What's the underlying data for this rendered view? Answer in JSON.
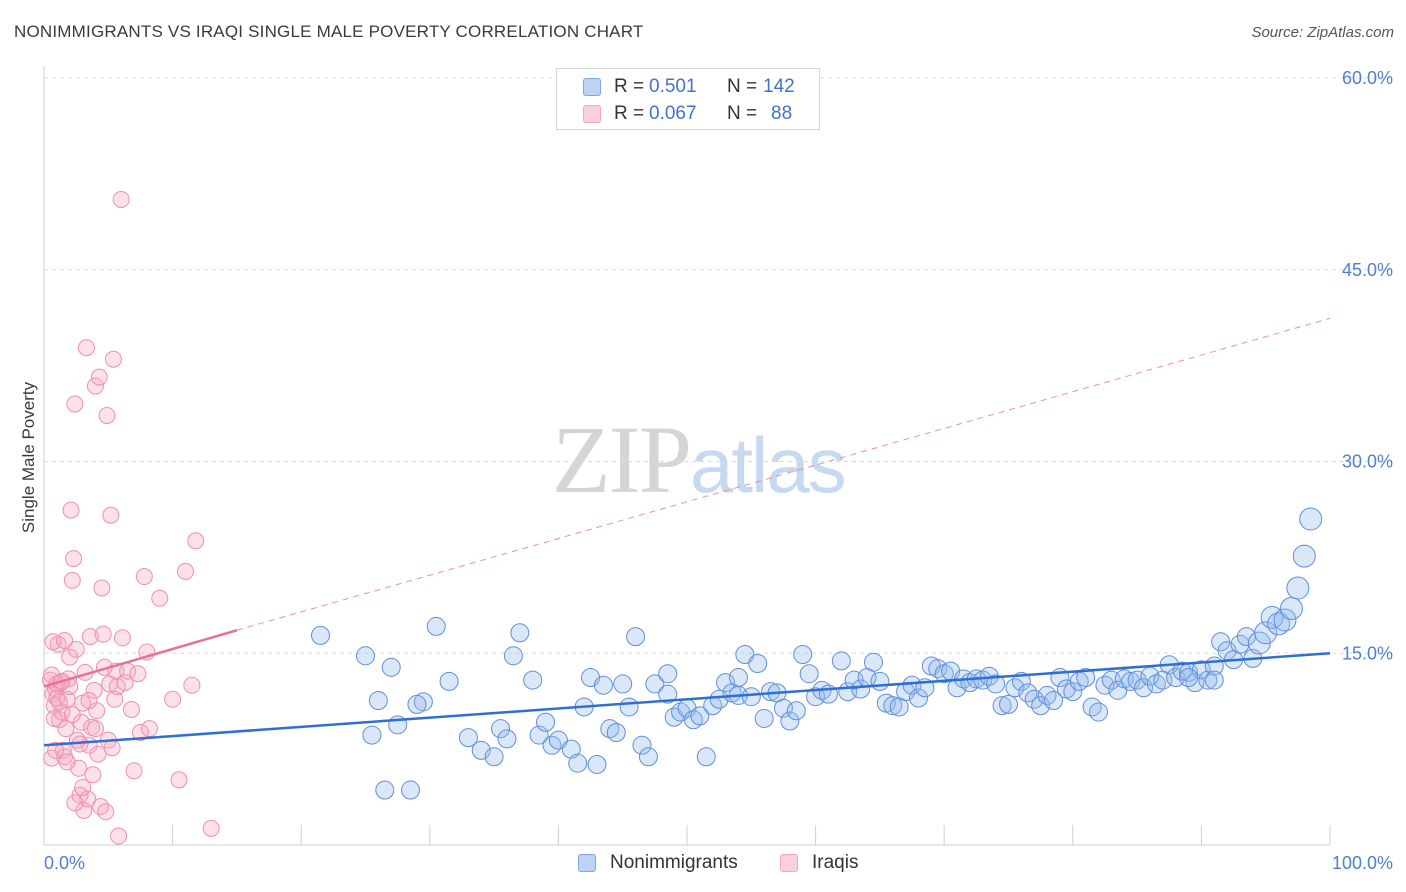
{
  "header": {
    "title": "NONIMMIGRANTS VS IRAQI SINGLE MALE POVERTY CORRELATION CHART",
    "source": "Source: ZipAtlas.com"
  },
  "watermark": {
    "zip": "ZIP",
    "atlas": "atlas"
  },
  "legend_top": [
    {
      "r_label": "R =",
      "r_value": "0.501",
      "n_label": "N =",
      "n_value": "142",
      "color": "#7fa8e8"
    },
    {
      "r_label": "R =",
      "r_value": "0.067",
      "n_label": "N =",
      "n_value": "88",
      "color": "#f3a6bd"
    }
  ],
  "legend_bottom": [
    {
      "label": "Nonimmigrants",
      "color": "#7fa8e8"
    },
    {
      "label": "Iraqis",
      "color": "#f3a6bd"
    }
  ],
  "chart_data": {
    "type": "scatter",
    "title": "NONIMMIGRANTS VS IRAQI SINGLE MALE POVERTY CORRELATION CHART",
    "xlabel": "",
    "ylabel": "Single Male Poverty",
    "xlim": [
      0,
      100
    ],
    "ylim": [
      0,
      60
    ],
    "x_tick_labels": [
      "0.0%",
      "100.0%"
    ],
    "y_ticks": [
      15,
      30,
      45,
      60
    ],
    "y_tick_labels": [
      "15.0%",
      "30.0%",
      "45.0%",
      "60.0%"
    ],
    "grid": "horizontal dashed",
    "legend_position": "top-center",
    "colors": {
      "nonimmigrants": "#4f86dd",
      "iraqis": "#ef8fad",
      "blue_line": "#2f6fd1",
      "pink_line": "#e8709a"
    },
    "series": [
      {
        "name": "Nonimmigrants",
        "trend": {
          "x0": 0,
          "y0": 7.8,
          "x1": 100,
          "y1": 15.0
        },
        "points": [
          [
            21.5,
            16.4
          ],
          [
            25.0,
            14.8
          ],
          [
            25.5,
            8.6
          ],
          [
            26.0,
            11.3
          ],
          [
            26.5,
            4.3
          ],
          [
            27.0,
            13.9
          ],
          [
            27.5,
            9.4
          ],
          [
            28.5,
            4.3
          ],
          [
            29.5,
            11.2
          ],
          [
            29.0,
            11.0
          ],
          [
            30.5,
            17.1
          ],
          [
            31.5,
            12.8
          ],
          [
            33.0,
            8.4
          ],
          [
            34.0,
            7.4
          ],
          [
            35.0,
            6.9
          ],
          [
            35.5,
            9.1
          ],
          [
            36.0,
            8.3
          ],
          [
            36.5,
            14.8
          ],
          [
            37.0,
            16.6
          ],
          [
            38.0,
            12.9
          ],
          [
            38.5,
            8.6
          ],
          [
            39.0,
            9.6
          ],
          [
            39.5,
            7.8
          ],
          [
            40.0,
            8.2
          ],
          [
            41.0,
            7.5
          ],
          [
            41.5,
            6.4
          ],
          [
            42.0,
            10.8
          ],
          [
            42.5,
            13.1
          ],
          [
            43.0,
            6.3
          ],
          [
            43.5,
            12.5
          ],
          [
            44.0,
            9.1
          ],
          [
            44.5,
            8.8
          ],
          [
            45.0,
            12.6
          ],
          [
            45.5,
            10.8
          ],
          [
            46.0,
            16.3
          ],
          [
            46.5,
            7.8
          ],
          [
            47.0,
            6.9
          ],
          [
            47.5,
            12.6
          ],
          [
            48.5,
            13.4
          ],
          [
            48.5,
            11.8
          ],
          [
            49.0,
            10.0
          ],
          [
            49.5,
            10.4
          ],
          [
            50.0,
            10.7
          ],
          [
            50.5,
            9.8
          ],
          [
            51.0,
            10.1
          ],
          [
            51.5,
            6.9
          ],
          [
            52.0,
            10.9
          ],
          [
            52.5,
            11.4
          ],
          [
            53.0,
            12.7
          ],
          [
            53.5,
            11.9
          ],
          [
            54.0,
            13.1
          ],
          [
            54.5,
            14.9
          ],
          [
            54.0,
            11.7
          ],
          [
            55.0,
            11.6
          ],
          [
            55.5,
            14.2
          ],
          [
            56.0,
            9.9
          ],
          [
            56.5,
            12.0
          ],
          [
            57.0,
            11.9
          ],
          [
            57.5,
            10.7
          ],
          [
            58.0,
            9.7
          ],
          [
            58.5,
            10.5
          ],
          [
            59.0,
            14.9
          ],
          [
            59.5,
            13.4
          ],
          [
            60.0,
            11.6
          ],
          [
            60.5,
            12.1
          ],
          [
            61.0,
            11.8
          ],
          [
            62.0,
            14.4
          ],
          [
            62.5,
            12.0
          ],
          [
            63.0,
            12.9
          ],
          [
            63.5,
            12.2
          ],
          [
            64.0,
            13.1
          ],
          [
            64.5,
            14.3
          ],
          [
            65.0,
            12.8
          ],
          [
            65.5,
            11.1
          ],
          [
            66.0,
            10.9
          ],
          [
            66.5,
            10.8
          ],
          [
            67.0,
            12.0
          ],
          [
            67.5,
            12.5
          ],
          [
            68.0,
            11.5
          ],
          [
            68.5,
            12.3
          ],
          [
            69.0,
            14.0
          ],
          [
            69.5,
            13.8
          ],
          [
            70.0,
            13.4
          ],
          [
            70.5,
            13.6
          ],
          [
            71.0,
            12.3
          ],
          [
            71.5,
            13.0
          ],
          [
            72.0,
            12.7
          ],
          [
            72.5,
            13.0
          ],
          [
            73.0,
            12.9
          ],
          [
            73.5,
            13.2
          ],
          [
            74.0,
            12.6
          ],
          [
            74.5,
            10.9
          ],
          [
            75.0,
            11.0
          ],
          [
            75.5,
            12.3
          ],
          [
            76.0,
            12.8
          ],
          [
            76.5,
            11.9
          ],
          [
            77.0,
            11.4
          ],
          [
            77.5,
            10.9
          ],
          [
            78.0,
            11.7
          ],
          [
            78.5,
            11.3
          ],
          [
            79.0,
            13.1
          ],
          [
            79.5,
            12.2
          ],
          [
            80.0,
            12.0
          ],
          [
            80.5,
            12.8
          ],
          [
            81.0,
            13.1
          ],
          [
            81.5,
            10.8
          ],
          [
            82.0,
            10.4
          ],
          [
            82.5,
            12.5
          ],
          [
            83.0,
            12.9
          ],
          [
            83.5,
            12.1
          ],
          [
            84.0,
            13.0
          ],
          [
            84.5,
            12.8
          ],
          [
            85.0,
            12.9
          ],
          [
            85.5,
            12.3
          ],
          [
            86.0,
            13.2
          ],
          [
            86.5,
            12.6
          ],
          [
            87.0,
            12.9
          ],
          [
            87.5,
            14.1
          ],
          [
            88.0,
            13.1
          ],
          [
            88.5,
            13.6
          ],
          [
            89.0,
            13.5
          ],
          [
            89.5,
            12.7
          ],
          [
            90.0,
            13.7
          ],
          [
            90.5,
            12.9
          ],
          [
            91.0,
            14.0
          ],
          [
            91.5,
            15.9
          ],
          [
            92.0,
            15.2
          ],
          [
            92.5,
            14.5
          ],
          [
            93.0,
            15.7
          ],
          [
            93.5,
            16.3
          ],
          [
            94.0,
            14.6
          ],
          [
            94.5,
            15.8
          ],
          [
            95.0,
            16.6
          ],
          [
            95.5,
            17.8
          ],
          [
            96.0,
            17.3
          ],
          [
            96.5,
            17.6
          ],
          [
            97.0,
            18.5
          ],
          [
            97.5,
            20.1
          ],
          [
            98.0,
            22.6
          ],
          [
            98.5,
            25.5
          ],
          [
            91.0,
            12.9
          ],
          [
            89.0,
            13.1
          ]
        ]
      },
      {
        "name": "Iraqis",
        "trend": {
          "x0": 0,
          "y0": 12.4,
          "x1": 15,
          "y1": 16.8,
          "dash_to": {
            "x": 100,
            "y": 41.2
          }
        },
        "points": [
          [
            0.5,
            12.9
          ],
          [
            0.6,
            13.3
          ],
          [
            0.7,
            11.8
          ],
          [
            0.8,
            10.9
          ],
          [
            0.9,
            12.2
          ],
          [
            1.0,
            11.5
          ],
          [
            1.1,
            15.7
          ],
          [
            1.2,
            9.8
          ],
          [
            1.3,
            12.7
          ],
          [
            1.4,
            10.4
          ],
          [
            1.5,
            7.4
          ],
          [
            1.6,
            6.9
          ],
          [
            1.7,
            9.1
          ],
          [
            1.8,
            11.4
          ],
          [
            1.9,
            13.0
          ],
          [
            2.0,
            12.4
          ],
          [
            2.1,
            26.2
          ],
          [
            2.2,
            20.7
          ],
          [
            2.3,
            22.4
          ],
          [
            2.4,
            34.5
          ],
          [
            2.5,
            15.3
          ],
          [
            2.6,
            8.2
          ],
          [
            2.7,
            6.0
          ],
          [
            2.8,
            3.9
          ],
          [
            2.9,
            9.6
          ],
          [
            3.0,
            11.1
          ],
          [
            3.1,
            2.7
          ],
          [
            3.2,
            13.5
          ],
          [
            3.3,
            38.9
          ],
          [
            3.4,
            3.6
          ],
          [
            3.5,
            7.8
          ],
          [
            3.6,
            16.3
          ],
          [
            3.7,
            9.2
          ],
          [
            3.8,
            5.5
          ],
          [
            3.9,
            12.1
          ],
          [
            4.0,
            35.9
          ],
          [
            4.1,
            10.5
          ],
          [
            4.2,
            7.1
          ],
          [
            4.3,
            36.6
          ],
          [
            4.4,
            3.0
          ],
          [
            4.5,
            20.1
          ],
          [
            4.6,
            16.5
          ],
          [
            4.7,
            13.9
          ],
          [
            4.8,
            2.6
          ],
          [
            4.9,
            33.6
          ],
          [
            5.0,
            8.2
          ],
          [
            5.1,
            12.6
          ],
          [
            5.2,
            25.8
          ],
          [
            5.3,
            7.6
          ],
          [
            5.4,
            38.0
          ],
          [
            5.5,
            11.4
          ],
          [
            5.6,
            13.6
          ],
          [
            5.7,
            12.4
          ],
          [
            5.8,
            0.7
          ],
          [
            6.0,
            50.5
          ],
          [
            6.1,
            16.2
          ],
          [
            6.3,
            12.7
          ],
          [
            6.5,
            13.6
          ],
          [
            6.8,
            10.6
          ],
          [
            7.0,
            5.8
          ],
          [
            7.3,
            13.4
          ],
          [
            7.5,
            8.8
          ],
          [
            7.8,
            21.0
          ],
          [
            8.0,
            15.1
          ],
          [
            8.2,
            9.1
          ],
          [
            9.0,
            19.3
          ],
          [
            10.0,
            11.4
          ],
          [
            10.5,
            5.1
          ],
          [
            11.0,
            21.4
          ],
          [
            11.5,
            12.5
          ],
          [
            11.8,
            23.8
          ],
          [
            13.0,
            1.3
          ],
          [
            0.6,
            6.8
          ],
          [
            0.7,
            15.9
          ],
          [
            0.8,
            9.9
          ],
          [
            0.9,
            7.4
          ],
          [
            1.0,
            12.6
          ],
          [
            1.2,
            11.2
          ],
          [
            1.4,
            12.8
          ],
          [
            1.6,
            16.0
          ],
          [
            1.8,
            6.5
          ],
          [
            2.0,
            14.7
          ],
          [
            2.2,
            10.2
          ],
          [
            2.4,
            3.3
          ],
          [
            2.8,
            7.9
          ],
          [
            3.0,
            4.5
          ],
          [
            3.5,
            11.3
          ],
          [
            4.0,
            9.1
          ]
        ]
      }
    ]
  }
}
